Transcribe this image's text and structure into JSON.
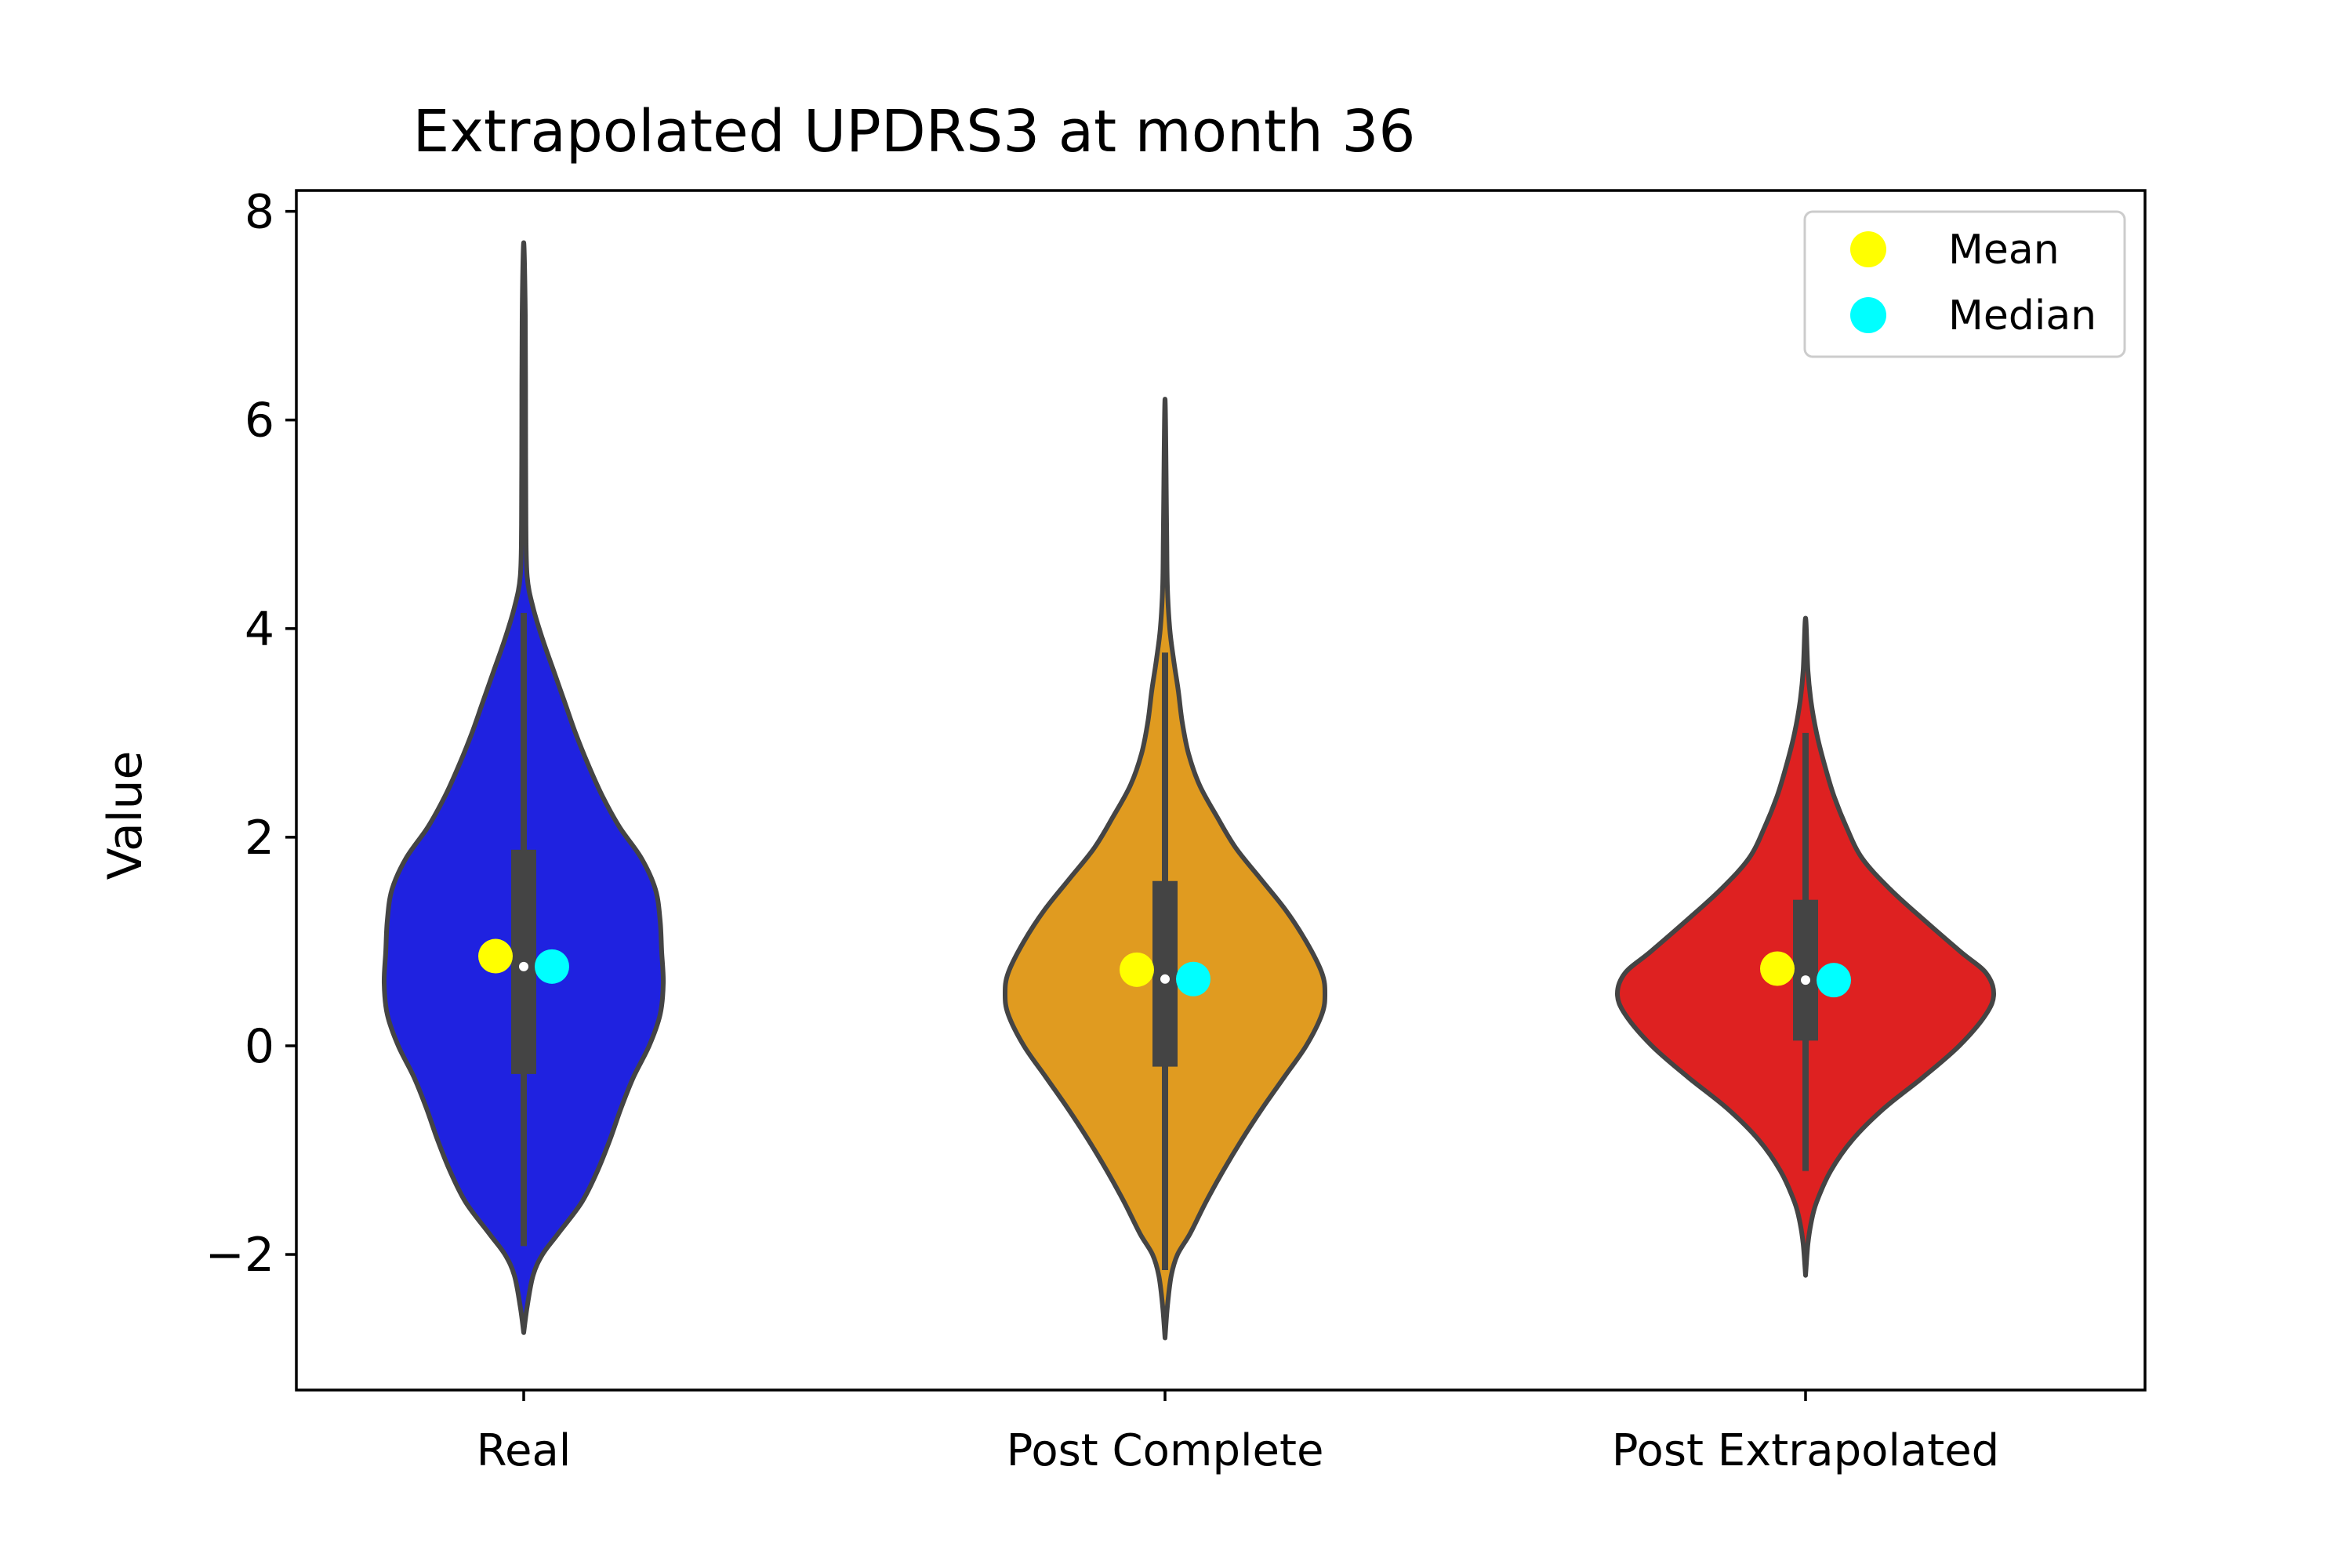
{
  "chart_data": {
    "type": "violin",
    "title": "Extrapolated UPDRS3 at month 36",
    "xlabel": "",
    "ylabel": "Value",
    "ylim": [
      -3.3,
      8.2
    ],
    "yticks": [
      -2,
      0,
      2,
      4,
      6,
      8
    ],
    "ytick_labels": [
      "−2",
      "0",
      "2",
      "4",
      "6",
      "8"
    ],
    "grid": false,
    "legend": {
      "placement": "top-right",
      "entries": [
        {
          "label": "Mean",
          "color": "#ffff00"
        },
        {
          "label": "Median",
          "color": "#00ffff"
        }
      ]
    },
    "outline_color": "#444444",
    "categories": [
      "Real",
      "Post Complete",
      "Post Extrapolated"
    ],
    "violins": [
      {
        "category": "Real",
        "color": "#1f22e0",
        "mean": 0.86,
        "median": 0.76,
        "q1": -0.27,
        "q3": 1.88,
        "whisker_low": -1.92,
        "whisker_high": 4.15,
        "profile": [
          [
            -2.75,
            0.0
          ],
          [
            -2.5,
            0.022
          ],
          [
            -2.2,
            0.06
          ],
          [
            -2.0,
            0.12
          ],
          [
            -1.8,
            0.22
          ],
          [
            -1.5,
            0.37
          ],
          [
            -1.2,
            0.47
          ],
          [
            -0.9,
            0.55
          ],
          [
            -0.6,
            0.62
          ],
          [
            -0.3,
            0.7
          ],
          [
            0.0,
            0.8
          ],
          [
            0.3,
            0.87
          ],
          [
            0.6,
            0.89
          ],
          [
            0.9,
            0.88
          ],
          [
            1.2,
            0.87
          ],
          [
            1.5,
            0.84
          ],
          [
            1.8,
            0.75
          ],
          [
            2.1,
            0.61
          ],
          [
            2.4,
            0.5
          ],
          [
            2.7,
            0.41
          ],
          [
            3.0,
            0.33
          ],
          [
            3.3,
            0.26
          ],
          [
            3.6,
            0.19
          ],
          [
            3.9,
            0.12
          ],
          [
            4.2,
            0.06
          ],
          [
            4.5,
            0.022
          ],
          [
            5.0,
            0.014
          ],
          [
            6.0,
            0.012
          ],
          [
            7.0,
            0.01
          ],
          [
            7.7,
            0.0
          ]
        ]
      },
      {
        "category": "Post Complete",
        "color": "#e09b20",
        "mean": 0.73,
        "median": 0.64,
        "q1": -0.2,
        "q3": 1.58,
        "whisker_low": -2.15,
        "whisker_high": 3.77,
        "profile": [
          [
            -2.8,
            0.0
          ],
          [
            -2.5,
            0.015
          ],
          [
            -2.2,
            0.04
          ],
          [
            -2.0,
            0.08
          ],
          [
            -1.8,
            0.16
          ],
          [
            -1.5,
            0.26
          ],
          [
            -1.2,
            0.37
          ],
          [
            -0.9,
            0.49
          ],
          [
            -0.6,
            0.62
          ],
          [
            -0.3,
            0.76
          ],
          [
            0.0,
            0.9
          ],
          [
            0.3,
            1.0
          ],
          [
            0.5,
            1.02
          ],
          [
            0.7,
            1.0
          ],
          [
            1.0,
            0.9
          ],
          [
            1.3,
            0.77
          ],
          [
            1.6,
            0.61
          ],
          [
            1.9,
            0.45
          ],
          [
            2.2,
            0.33
          ],
          [
            2.5,
            0.22
          ],
          [
            2.8,
            0.15
          ],
          [
            3.1,
            0.11
          ],
          [
            3.4,
            0.085
          ],
          [
            3.7,
            0.055
          ],
          [
            4.0,
            0.03
          ],
          [
            4.4,
            0.015
          ],
          [
            5.0,
            0.01
          ],
          [
            6.2,
            0.0
          ]
        ]
      },
      {
        "category": "Post Extrapolated",
        "color": "#de2121",
        "mean": 0.74,
        "median": 0.63,
        "q1": 0.05,
        "q3": 1.4,
        "whisker_low": -1.2,
        "whisker_high": 3.0,
        "profile": [
          [
            -2.2,
            0.0
          ],
          [
            -1.9,
            0.015
          ],
          [
            -1.7,
            0.035
          ],
          [
            -1.5,
            0.07
          ],
          [
            -1.2,
            0.16
          ],
          [
            -0.9,
            0.3
          ],
          [
            -0.6,
            0.5
          ],
          [
            -0.3,
            0.75
          ],
          [
            0.0,
            0.98
          ],
          [
            0.3,
            1.15
          ],
          [
            0.5,
            1.2
          ],
          [
            0.7,
            1.15
          ],
          [
            0.9,
            0.99
          ],
          [
            1.2,
            0.76
          ],
          [
            1.5,
            0.54
          ],
          [
            1.8,
            0.36
          ],
          [
            2.1,
            0.26
          ],
          [
            2.4,
            0.18
          ],
          [
            2.7,
            0.12
          ],
          [
            3.0,
            0.07
          ],
          [
            3.3,
            0.035
          ],
          [
            3.6,
            0.015
          ],
          [
            4.1,
            0.0
          ]
        ]
      }
    ]
  }
}
